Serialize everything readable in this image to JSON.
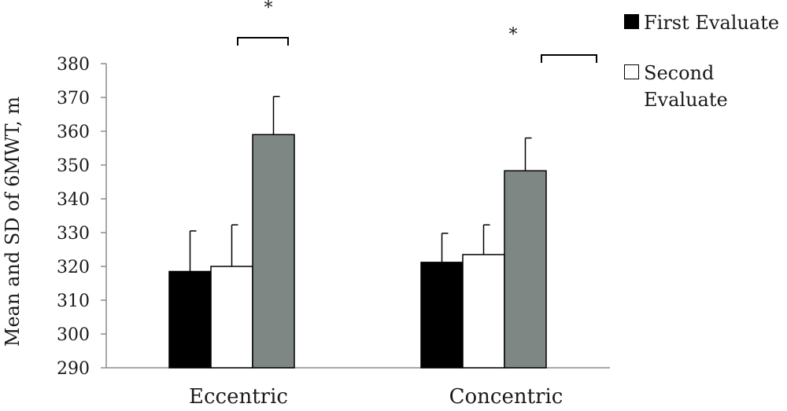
{
  "chart_data": {
    "type": "bar",
    "title": "",
    "xlabel": "",
    "ylabel": "Mean and SD  of 6MWT, m",
    "ylim": [
      290,
      380
    ],
    "yticks": [
      290,
      300,
      310,
      320,
      330,
      340,
      350,
      360,
      370,
      380
    ],
    "categories": [
      "Eccentric",
      "Concentric"
    ],
    "series": [
      {
        "name": "First Evaluate",
        "color": "#000000",
        "values": [
          318.5,
          321.2
        ],
        "sd": [
          12.0,
          8.6
        ]
      },
      {
        "name": "Second Evaluate",
        "color": "#ffffff",
        "values": [
          320.0,
          323.5
        ],
        "sd": [
          12.3,
          8.8
        ]
      },
      {
        "color": "#7f8784",
        "values": [
          359.0,
          348.3
        ],
        "sd": [
          11.3,
          9.7
        ]
      }
    ],
    "annotations": [
      "*",
      "*"
    ],
    "legend_position": "top-right",
    "grid": false
  }
}
